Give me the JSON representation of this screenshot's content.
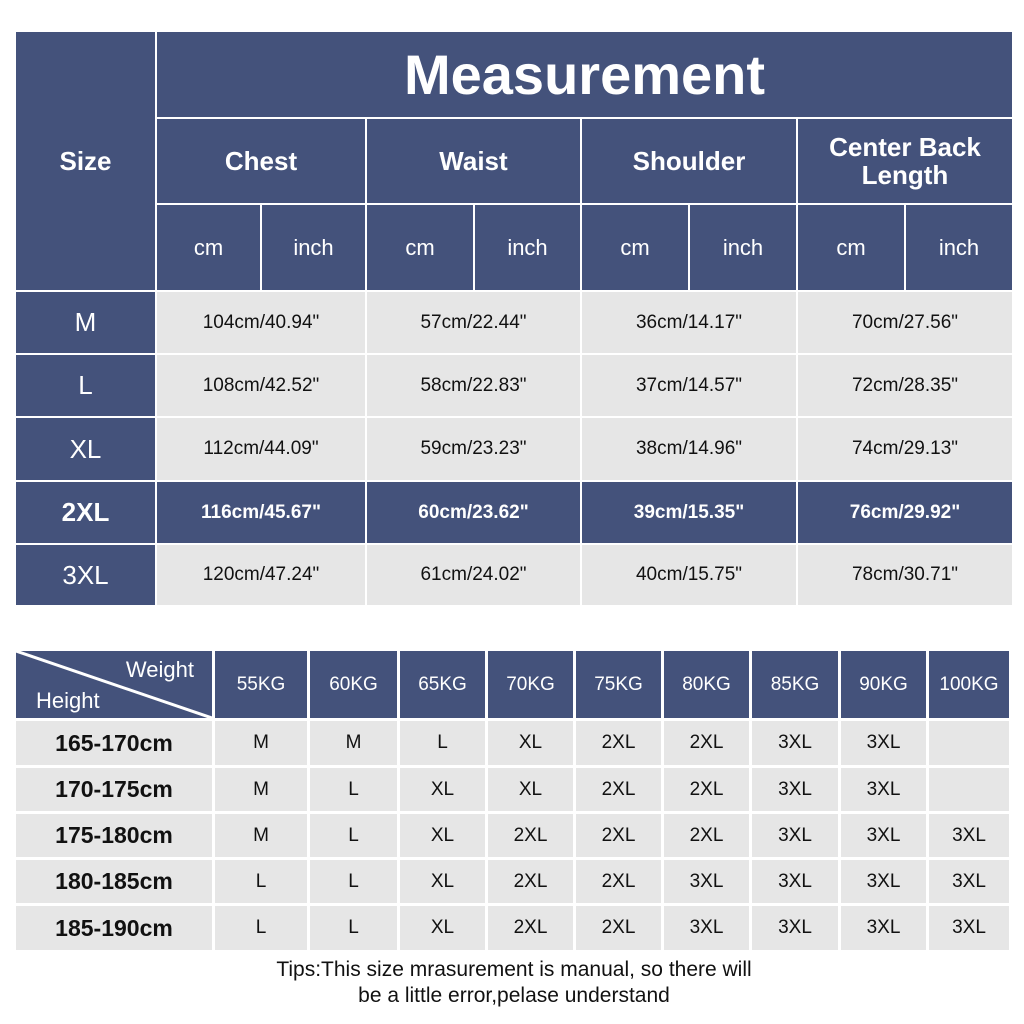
{
  "size_chart": {
    "title": "Measurement",
    "size_header": "Size",
    "groups": [
      "Chest",
      "Waist",
      "Shoulder",
      "Center Back Length"
    ],
    "units": [
      "cm",
      "inch"
    ],
    "rows": [
      {
        "size": "M",
        "values": [
          "104cm/40.94\"",
          "57cm/22.44\"",
          "36cm/14.17\"",
          "70cm/27.56\""
        ],
        "highlight": false
      },
      {
        "size": "L",
        "values": [
          "108cm/42.52\"",
          "58cm/22.83\"",
          "37cm/14.57\"",
          "72cm/28.35\""
        ],
        "highlight": false
      },
      {
        "size": "XL",
        "values": [
          "112cm/44.09\"",
          "59cm/23.23\"",
          "38cm/14.96\"",
          "74cm/29.13\""
        ],
        "highlight": false
      },
      {
        "size": "2XL",
        "values": [
          "116cm/45.67\"",
          "60cm/23.62\"",
          "39cm/15.35\"",
          "76cm/29.92\""
        ],
        "highlight": true
      },
      {
        "size": "3XL",
        "values": [
          "120cm/47.24\"",
          "61cm/24.02\"",
          "40cm/15.75\"",
          "78cm/30.71\""
        ],
        "highlight": false
      }
    ]
  },
  "fit_chart": {
    "weight_label": "Weight",
    "height_label": "Height",
    "weights": [
      "55KG",
      "60KG",
      "65KG",
      "70KG",
      "75KG",
      "80KG",
      "85KG",
      "90KG",
      "100KG"
    ],
    "rows": [
      {
        "height": "165-170cm",
        "sizes": [
          "M",
          "M",
          "L",
          "XL",
          "2XL",
          "2XL",
          "3XL",
          "3XL",
          ""
        ]
      },
      {
        "height": "170-175cm",
        "sizes": [
          "M",
          "L",
          "XL",
          "XL",
          "2XL",
          "2XL",
          "3XL",
          "3XL",
          ""
        ]
      },
      {
        "height": "175-180cm",
        "sizes": [
          "M",
          "L",
          "XL",
          "2XL",
          "2XL",
          "2XL",
          "3XL",
          "3XL",
          "3XL"
        ]
      },
      {
        "height": "180-185cm",
        "sizes": [
          "L",
          "L",
          "XL",
          "2XL",
          "2XL",
          "3XL",
          "3XL",
          "3XL",
          "3XL"
        ]
      },
      {
        "height": "185-190cm",
        "sizes": [
          "L",
          "L",
          "XL",
          "2XL",
          "2XL",
          "3XL",
          "3XL",
          "3XL",
          "3XL"
        ]
      }
    ]
  },
  "tips": [
    "Tips:This size mrasurement is manual, so there will",
    "be a little error,pelase understand"
  ],
  "colors": {
    "header": "#44527b",
    "cell": "#e6e6e6"
  }
}
